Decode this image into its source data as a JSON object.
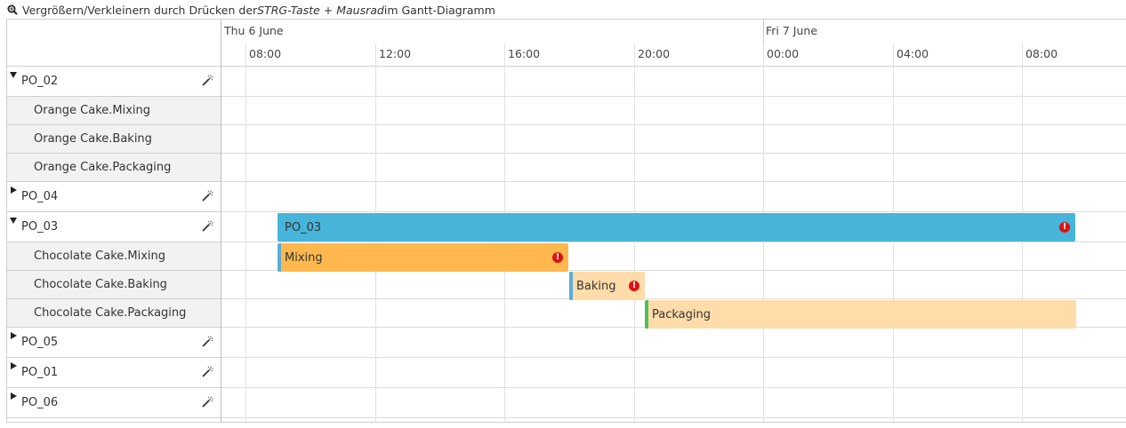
{
  "hint": {
    "prefix": "Vergrößern/Verkleinern durch Drücken der ",
    "key": "STRG-Taste + Mausrad",
    "suffix": " im Gantt-Diagramm",
    "icon": "zoom-icon"
  },
  "timeline": {
    "days": [
      {
        "label": "Thu 6 June"
      },
      {
        "label": "Fri 7 June"
      }
    ],
    "hours": [
      "08:00",
      "12:00",
      "16:00",
      "20:00",
      "00:00",
      "04:00",
      "08:00"
    ]
  },
  "rows": [
    {
      "label": "PO_02",
      "type": "parent",
      "expanded": true
    },
    {
      "label": "Orange Cake.Mixing",
      "type": "child"
    },
    {
      "label": "Orange Cake.Baking",
      "type": "child"
    },
    {
      "label": "Orange Cake.Packaging",
      "type": "child"
    },
    {
      "label": "PO_04",
      "type": "parent",
      "expanded": false
    },
    {
      "label": "PO_03",
      "type": "parent",
      "expanded": true
    },
    {
      "label": "Chocolate Cake.Mixing",
      "type": "child"
    },
    {
      "label": "Chocolate Cake.Baking",
      "type": "child"
    },
    {
      "label": "Chocolate Cake.Packaging",
      "type": "child"
    },
    {
      "label": "PO_05",
      "type": "parent",
      "expanded": false
    },
    {
      "label": "PO_01",
      "type": "parent",
      "expanded": false
    },
    {
      "label": "PO_06",
      "type": "parent",
      "expanded": false
    }
  ],
  "bars": [
    {
      "row": 5,
      "label": "PO_03",
      "start": "06-06 09:00",
      "end": "07-06 09:40",
      "color": "#47b4d9",
      "edge": "#47b4d9",
      "warning": true
    },
    {
      "row": 6,
      "label": "Mixing",
      "start": "06-06 09:00",
      "end": "06-06 18:00",
      "color": "#ffb84d",
      "edge": "#5aaed6",
      "warning": true
    },
    {
      "row": 7,
      "label": "Baking",
      "start": "06-06 18:00",
      "end": "06-06 20:20",
      "color": "#ffdcaa",
      "edge": "#5aaed6",
      "warning": true
    },
    {
      "row": 8,
      "label": "Packaging",
      "start": "06-06 20:20",
      "end": "07-06 09:40",
      "color": "#ffdcaa",
      "edge": "#4fbf5a",
      "warning": false
    }
  ],
  "colors": {
    "po_bar": "#47b4d9",
    "mixing_bar": "#ffb84d",
    "task_bar_light": "#ffdcaa",
    "warning": "#e01010",
    "child_row_bg": "#f2f2f2"
  }
}
